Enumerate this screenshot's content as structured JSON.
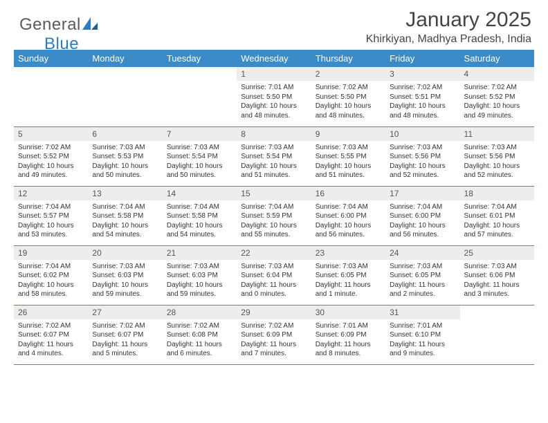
{
  "brand": {
    "part1": "General",
    "part2": "Blue"
  },
  "title": "January 2025",
  "location": "Khirkiyan, Madhya Pradesh, India",
  "colors": {
    "header_bg": "#3b8bc8",
    "header_text": "#ffffff",
    "daynum_bg": "#ededed",
    "border": "#3b8bc8",
    "logo_gray": "#5a5a5a",
    "logo_blue": "#2f7bbf"
  },
  "weekdays": [
    "Sunday",
    "Monday",
    "Tuesday",
    "Wednesday",
    "Thursday",
    "Friday",
    "Saturday"
  ],
  "weeks": [
    [
      null,
      null,
      null,
      {
        "n": "1",
        "sr": "Sunrise: 7:01 AM",
        "ss": "Sunset: 5:50 PM",
        "dl": "Daylight: 10 hours and 48 minutes."
      },
      {
        "n": "2",
        "sr": "Sunrise: 7:02 AM",
        "ss": "Sunset: 5:50 PM",
        "dl": "Daylight: 10 hours and 48 minutes."
      },
      {
        "n": "3",
        "sr": "Sunrise: 7:02 AM",
        "ss": "Sunset: 5:51 PM",
        "dl": "Daylight: 10 hours and 48 minutes."
      },
      {
        "n": "4",
        "sr": "Sunrise: 7:02 AM",
        "ss": "Sunset: 5:52 PM",
        "dl": "Daylight: 10 hours and 49 minutes."
      }
    ],
    [
      {
        "n": "5",
        "sr": "Sunrise: 7:02 AM",
        "ss": "Sunset: 5:52 PM",
        "dl": "Daylight: 10 hours and 49 minutes."
      },
      {
        "n": "6",
        "sr": "Sunrise: 7:03 AM",
        "ss": "Sunset: 5:53 PM",
        "dl": "Daylight: 10 hours and 50 minutes."
      },
      {
        "n": "7",
        "sr": "Sunrise: 7:03 AM",
        "ss": "Sunset: 5:54 PM",
        "dl": "Daylight: 10 hours and 50 minutes."
      },
      {
        "n": "8",
        "sr": "Sunrise: 7:03 AM",
        "ss": "Sunset: 5:54 PM",
        "dl": "Daylight: 10 hours and 51 minutes."
      },
      {
        "n": "9",
        "sr": "Sunrise: 7:03 AM",
        "ss": "Sunset: 5:55 PM",
        "dl": "Daylight: 10 hours and 51 minutes."
      },
      {
        "n": "10",
        "sr": "Sunrise: 7:03 AM",
        "ss": "Sunset: 5:56 PM",
        "dl": "Daylight: 10 hours and 52 minutes."
      },
      {
        "n": "11",
        "sr": "Sunrise: 7:03 AM",
        "ss": "Sunset: 5:56 PM",
        "dl": "Daylight: 10 hours and 52 minutes."
      }
    ],
    [
      {
        "n": "12",
        "sr": "Sunrise: 7:04 AM",
        "ss": "Sunset: 5:57 PM",
        "dl": "Daylight: 10 hours and 53 minutes."
      },
      {
        "n": "13",
        "sr": "Sunrise: 7:04 AM",
        "ss": "Sunset: 5:58 PM",
        "dl": "Daylight: 10 hours and 54 minutes."
      },
      {
        "n": "14",
        "sr": "Sunrise: 7:04 AM",
        "ss": "Sunset: 5:58 PM",
        "dl": "Daylight: 10 hours and 54 minutes."
      },
      {
        "n": "15",
        "sr": "Sunrise: 7:04 AM",
        "ss": "Sunset: 5:59 PM",
        "dl": "Daylight: 10 hours and 55 minutes."
      },
      {
        "n": "16",
        "sr": "Sunrise: 7:04 AM",
        "ss": "Sunset: 6:00 PM",
        "dl": "Daylight: 10 hours and 56 minutes."
      },
      {
        "n": "17",
        "sr": "Sunrise: 7:04 AM",
        "ss": "Sunset: 6:00 PM",
        "dl": "Daylight: 10 hours and 56 minutes."
      },
      {
        "n": "18",
        "sr": "Sunrise: 7:04 AM",
        "ss": "Sunset: 6:01 PM",
        "dl": "Daylight: 10 hours and 57 minutes."
      }
    ],
    [
      {
        "n": "19",
        "sr": "Sunrise: 7:04 AM",
        "ss": "Sunset: 6:02 PM",
        "dl": "Daylight: 10 hours and 58 minutes."
      },
      {
        "n": "20",
        "sr": "Sunrise: 7:03 AM",
        "ss": "Sunset: 6:03 PM",
        "dl": "Daylight: 10 hours and 59 minutes."
      },
      {
        "n": "21",
        "sr": "Sunrise: 7:03 AM",
        "ss": "Sunset: 6:03 PM",
        "dl": "Daylight: 10 hours and 59 minutes."
      },
      {
        "n": "22",
        "sr": "Sunrise: 7:03 AM",
        "ss": "Sunset: 6:04 PM",
        "dl": "Daylight: 11 hours and 0 minutes."
      },
      {
        "n": "23",
        "sr": "Sunrise: 7:03 AM",
        "ss": "Sunset: 6:05 PM",
        "dl": "Daylight: 11 hours and 1 minute."
      },
      {
        "n": "24",
        "sr": "Sunrise: 7:03 AM",
        "ss": "Sunset: 6:05 PM",
        "dl": "Daylight: 11 hours and 2 minutes."
      },
      {
        "n": "25",
        "sr": "Sunrise: 7:03 AM",
        "ss": "Sunset: 6:06 PM",
        "dl": "Daylight: 11 hours and 3 minutes."
      }
    ],
    [
      {
        "n": "26",
        "sr": "Sunrise: 7:02 AM",
        "ss": "Sunset: 6:07 PM",
        "dl": "Daylight: 11 hours and 4 minutes."
      },
      {
        "n": "27",
        "sr": "Sunrise: 7:02 AM",
        "ss": "Sunset: 6:07 PM",
        "dl": "Daylight: 11 hours and 5 minutes."
      },
      {
        "n": "28",
        "sr": "Sunrise: 7:02 AM",
        "ss": "Sunset: 6:08 PM",
        "dl": "Daylight: 11 hours and 6 minutes."
      },
      {
        "n": "29",
        "sr": "Sunrise: 7:02 AM",
        "ss": "Sunset: 6:09 PM",
        "dl": "Daylight: 11 hours and 7 minutes."
      },
      {
        "n": "30",
        "sr": "Sunrise: 7:01 AM",
        "ss": "Sunset: 6:09 PM",
        "dl": "Daylight: 11 hours and 8 minutes."
      },
      {
        "n": "31",
        "sr": "Sunrise: 7:01 AM",
        "ss": "Sunset: 6:10 PM",
        "dl": "Daylight: 11 hours and 9 minutes."
      },
      null
    ]
  ]
}
